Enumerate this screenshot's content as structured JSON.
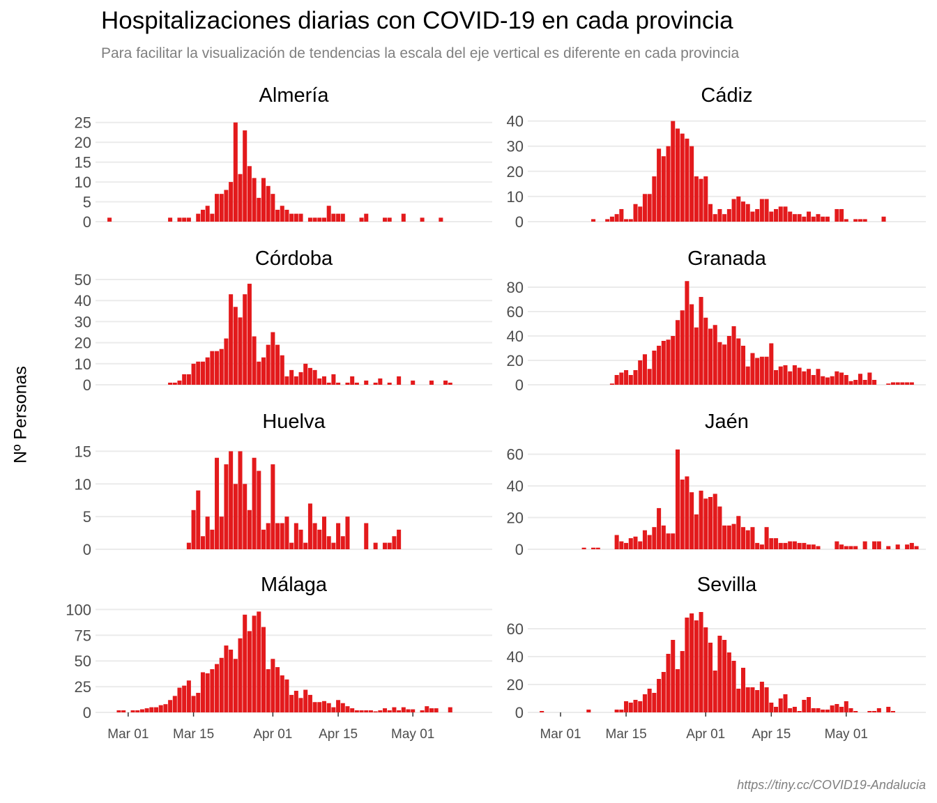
{
  "title": "Hospitalizaciones diarias con COVID-19 en cada provincia",
  "subtitle": "Para facilitar la visualización de tendencias la escala del eje vertical es diferente en cada provincia",
  "ylabel": "Nº Personas",
  "caption": "https://tiny.cc/COVID19-Andalucia",
  "colors": {
    "bar": "#e31a1c",
    "grid": "#ebebeb",
    "text": "#4d4d4d"
  },
  "chart_data": {
    "type": "bar",
    "facets": "2x4",
    "x_start": "2020-02-21",
    "x_ticks": [
      {
        "label": "Mar 01",
        "day": 9
      },
      {
        "label": "Mar 15",
        "day": 23
      },
      {
        "label": "Apr 01",
        "day": 40
      },
      {
        "label": "Apr 15",
        "day": 54
      },
      {
        "label": "May 01",
        "day": 70
      }
    ],
    "panels": [
      {
        "name": "Almería",
        "ylim": [
          0,
          26
        ],
        "yticks": [
          0,
          5,
          10,
          15,
          20,
          25
        ],
        "values": [
          0,
          0,
          0,
          0,
          0,
          1,
          0,
          0,
          0,
          0,
          0,
          0,
          0,
          0,
          0,
          0,
          0,
          0,
          1,
          0,
          1,
          1,
          1,
          0,
          2,
          3,
          4,
          2,
          7,
          7,
          8,
          10,
          25,
          12,
          23,
          14,
          11,
          6,
          11,
          9,
          7,
          3,
          4,
          3,
          2,
          2,
          2,
          0,
          1,
          1,
          1,
          1,
          4,
          2,
          2,
          2,
          0,
          0,
          0,
          1,
          2,
          0,
          0,
          0,
          1,
          1,
          0,
          0,
          2,
          0,
          0,
          0,
          1,
          0,
          0,
          0,
          1
        ]
      },
      {
        "name": "Cádiz",
        "ylim": [
          0,
          41
        ],
        "yticks": [
          0,
          10,
          20,
          30,
          40
        ],
        "values": [
          0,
          0,
          0,
          0,
          0,
          0,
          0,
          0,
          0,
          0,
          0,
          0,
          0,
          0,
          0,
          0,
          1,
          0,
          0,
          1,
          2,
          3,
          5,
          1,
          1,
          7,
          6,
          11,
          11,
          18,
          29,
          26,
          30,
          40,
          37,
          35,
          33,
          30,
          18,
          17,
          18,
          7,
          3,
          5,
          3,
          5,
          9,
          10,
          8,
          7,
          4,
          5,
          9,
          9,
          4,
          5,
          6,
          6,
          4,
          3,
          3,
          2,
          4,
          2,
          3,
          2,
          2,
          0,
          5,
          5,
          1,
          0,
          1,
          1,
          1,
          0,
          0,
          0,
          2
        ]
      },
      {
        "name": "Córdoba",
        "ylim": [
          0,
          51
        ],
        "yticks": [
          0,
          10,
          20,
          30,
          40,
          50
        ],
        "values": [
          0,
          0,
          0,
          0,
          0,
          0,
          0,
          0,
          0,
          0,
          0,
          0,
          0,
          0,
          0,
          0,
          0,
          0,
          1,
          1,
          2,
          5,
          5,
          10,
          11,
          11,
          13,
          16,
          16,
          17,
          22,
          43,
          37,
          32,
          43,
          48,
          23,
          11,
          13,
          19,
          25,
          19,
          14,
          4,
          7,
          4,
          6,
          10,
          8,
          7,
          3,
          4,
          1,
          5,
          1,
          0,
          1,
          4,
          1,
          0,
          2,
          0,
          1,
          3,
          0,
          1,
          0,
          4,
          0,
          0,
          2,
          0,
          0,
          0,
          2,
          0,
          0,
          2,
          1
        ]
      },
      {
        "name": "Granada",
        "ylim": [
          0,
          88
        ],
        "yticks": [
          0,
          20,
          40,
          60,
          80
        ],
        "values": [
          0,
          0,
          0,
          0,
          0,
          0,
          0,
          0,
          0,
          0,
          0,
          0,
          0,
          0,
          0,
          0,
          0,
          0,
          0,
          0,
          1,
          8,
          10,
          12,
          8,
          12,
          20,
          25,
          13,
          28,
          32,
          36,
          37,
          40,
          53,
          61,
          85,
          66,
          47,
          72,
          55,
          46,
          49,
          35,
          33,
          40,
          48,
          38,
          32,
          15,
          26,
          22,
          23,
          23,
          34,
          12,
          15,
          16,
          11,
          16,
          14,
          11,
          13,
          8,
          13,
          7,
          6,
          7,
          11,
          10,
          8,
          3,
          4,
          9,
          4,
          10,
          4,
          0,
          0,
          1,
          2,
          2,
          2,
          2,
          2
        ]
      },
      {
        "name": "Huelva",
        "ylim": [
          0,
          16
        ],
        "yticks": [
          0,
          5,
          10,
          15
        ],
        "values": [
          0,
          0,
          0,
          0,
          0,
          0,
          0,
          0,
          0,
          0,
          0,
          0,
          0,
          0,
          0,
          0,
          0,
          0,
          0,
          0,
          0,
          0,
          1,
          6,
          9,
          2,
          5,
          3,
          14,
          5,
          13,
          15,
          10,
          15,
          10,
          6,
          14,
          12,
          3,
          4,
          13,
          4,
          4,
          5,
          1,
          4,
          3,
          1,
          7,
          4,
          3,
          5,
          2,
          1,
          4,
          2,
          5,
          0,
          0,
          0,
          4,
          0,
          1,
          0,
          1,
          1,
          2,
          3,
          0,
          0,
          0,
          0,
          0,
          0,
          0,
          0,
          0,
          0,
          0
        ]
      },
      {
        "name": "Jaén",
        "ylim": [
          0,
          66
        ],
        "yticks": [
          0,
          20,
          40,
          60
        ],
        "values": [
          0,
          0,
          0,
          0,
          0,
          0,
          0,
          0,
          0,
          0,
          0,
          0,
          0,
          0,
          1,
          0,
          1,
          1,
          0,
          0,
          0,
          9,
          5,
          4,
          7,
          8,
          5,
          12,
          9,
          14,
          26,
          15,
          10,
          10,
          63,
          44,
          46,
          36,
          22,
          37,
          32,
          33,
          35,
          27,
          15,
          15,
          16,
          21,
          14,
          12,
          14,
          4,
          3,
          14,
          7,
          7,
          4,
          4,
          5,
          5,
          4,
          4,
          3,
          3,
          2,
          0,
          0,
          0,
          5,
          3,
          2,
          2,
          2,
          0,
          5,
          0,
          5,
          5,
          0,
          2,
          0,
          3,
          0,
          3,
          4,
          2
        ]
      },
      {
        "name": "Málaga",
        "ylim": [
          0,
          103
        ],
        "yticks": [
          0,
          25,
          50,
          75,
          100
        ],
        "values": [
          0,
          0,
          0,
          0,
          0,
          0,
          0,
          2,
          2,
          0,
          2,
          2,
          3,
          4,
          5,
          5,
          7,
          8,
          12,
          16,
          24,
          26,
          31,
          16,
          19,
          39,
          38,
          42,
          47,
          53,
          65,
          61,
          52,
          72,
          95,
          79,
          94,
          98,
          83,
          42,
          52,
          44,
          36,
          32,
          17,
          21,
          14,
          22,
          17,
          10,
          10,
          11,
          9,
          5,
          12,
          9,
          6,
          4,
          2,
          2,
          2,
          2,
          1,
          2,
          4,
          2,
          5,
          2,
          5,
          3,
          3,
          0,
          2,
          6,
          4,
          4,
          0,
          0,
          5
        ]
      },
      {
        "name": "Sevilla",
        "ylim": [
          0,
          76
        ],
        "yticks": [
          0,
          20,
          40,
          60
        ],
        "values": [
          0,
          0,
          0,
          0,
          0,
          1,
          0,
          0,
          0,
          0,
          0,
          0,
          0,
          0,
          0,
          2,
          0,
          0,
          0,
          0,
          0,
          2,
          2,
          8,
          7,
          9,
          8,
          13,
          17,
          14,
          24,
          29,
          42,
          52,
          31,
          44,
          68,
          71,
          66,
          72,
          61,
          50,
          30,
          55,
          52,
          43,
          37,
          17,
          32,
          18,
          18,
          16,
          22,
          18,
          7,
          4,
          10,
          13,
          3,
          4,
          1,
          9,
          11,
          3,
          3,
          2,
          2,
          5,
          6,
          4,
          8,
          3,
          1,
          0,
          0,
          1,
          1,
          3,
          0,
          4,
          1
        ]
      }
    ]
  }
}
